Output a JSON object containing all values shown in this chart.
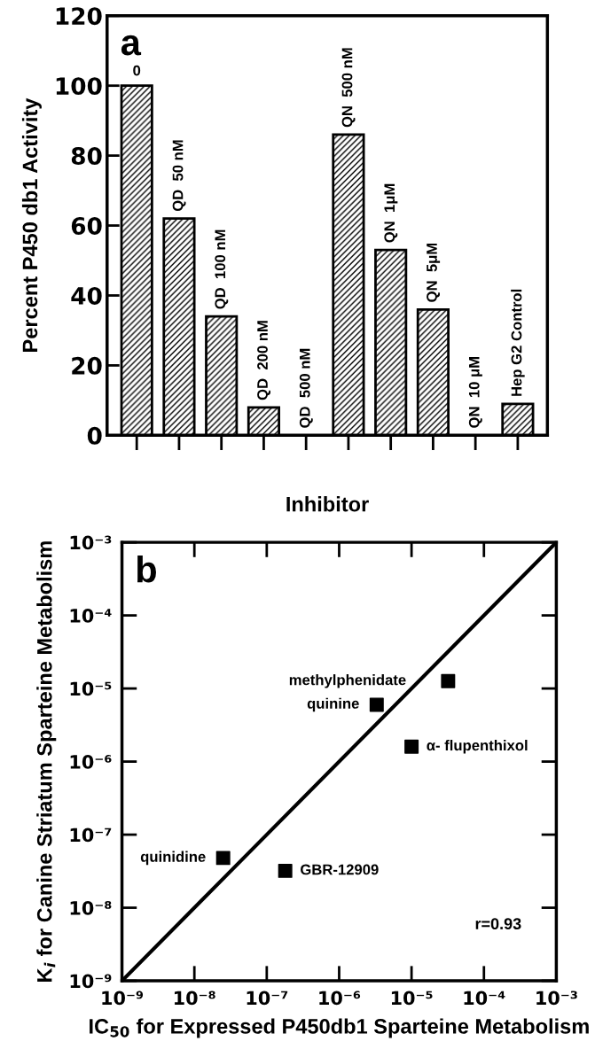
{
  "chart_data": [
    {
      "type": "bar",
      "xlabel": "Inhibitor",
      "ylabel": "Percent P450 db1 Activity",
      "annotations": [
        "a"
      ],
      "categories": [
        "0",
        "QD  50 nM",
        "QD  100 nM",
        "QD  200 nM",
        "QD  500 nM",
        "QN  500 nM",
        "QN  1μM",
        "QN  5μM",
        "QN  10 μM",
        "Hep G2 Control"
      ],
      "values": [
        100,
        62,
        34,
        8,
        0,
        86,
        53,
        36,
        0,
        9
      ],
      "color": "#000000",
      "ylim": [
        0,
        120
      ],
      "yticks": [
        0,
        20,
        40,
        60,
        80,
        100,
        120
      ],
      "tick_labels": "y",
      "grid": false,
      "legend": false
    },
    {
      "type": "scatter",
      "xlabel": "IC$_{50}$ for Expressed P450db1 Sparteine Metabolism",
      "ylabel": "K$_{i}$ for Canine Striatum Sparteine Metabolism",
      "annotations": [
        "b",
        "r=0.93",
        {
          "text": "methylphenidate",
          "x": 3.2e-05,
          "y": 1.26e-05
        },
        {
          "text": "quinine",
          "x": 3.3e-06,
          "y": 6e-06
        },
        {
          "text": "α- flupenthixol",
          "x": 1e-05,
          "y": 1.6e-06
        },
        {
          "text": "quinidine",
          "x": 2.5e-08,
          "y": 4.8e-08
        },
        {
          "text": "GBR-12909",
          "x": 1.8e-07,
          "y": 3.2e-08
        }
      ],
      "log": "xy",
      "marker": "square",
      "grid": false,
      "legend": false,
      "xlim": [
        1e-09,
        0.001
      ],
      "ylim": [
        1e-09,
        0.001
      ],
      "xticks": [
        {
          "value": 1e-09,
          "label": "10⁻⁹"
        },
        {
          "value": 1e-08,
          "label": "10⁻⁸"
        },
        {
          "value": 1e-07,
          "label": "10⁻⁷"
        },
        {
          "value": 1e-06,
          "label": "10⁻⁶"
        },
        {
          "value": 1e-05,
          "label": "10⁻⁵"
        },
        {
          "value": 0.0001,
          "label": "10⁻⁴"
        },
        {
          "value": 0.001,
          "label": "10⁻³"
        }
      ],
      "yticks": [
        {
          "value": 1e-09,
          "label": "10⁻⁹"
        },
        {
          "value": 1e-08,
          "label": "10⁻⁸"
        },
        {
          "value": 1e-07,
          "label": "10⁻⁷"
        },
        {
          "value": 1e-06,
          "label": "10⁻⁶"
        },
        {
          "value": 1e-05,
          "label": "10⁻⁵"
        },
        {
          "value": 0.0001,
          "label": "10⁻⁴"
        },
        {
          "value": 0.001,
          "label": "10⁻³"
        }
      ],
      "series": [
        {
          "color": "#000000",
          "x": [
            3.2e-05,
            3.3e-06,
            1e-05,
            2.5e-08,
            1.8e-07
          ],
          "values": [
            1.26e-05,
            6e-06,
            1.6e-06,
            4.8e-08,
            3.2e-08
          ]
        },
        {
          "type": "line",
          "color": "#000000",
          "marker": "none",
          "x": [
            1e-09,
            0.001
          ],
          "values": [
            1e-09,
            0.001
          ]
        }
      ]
    }
  ]
}
